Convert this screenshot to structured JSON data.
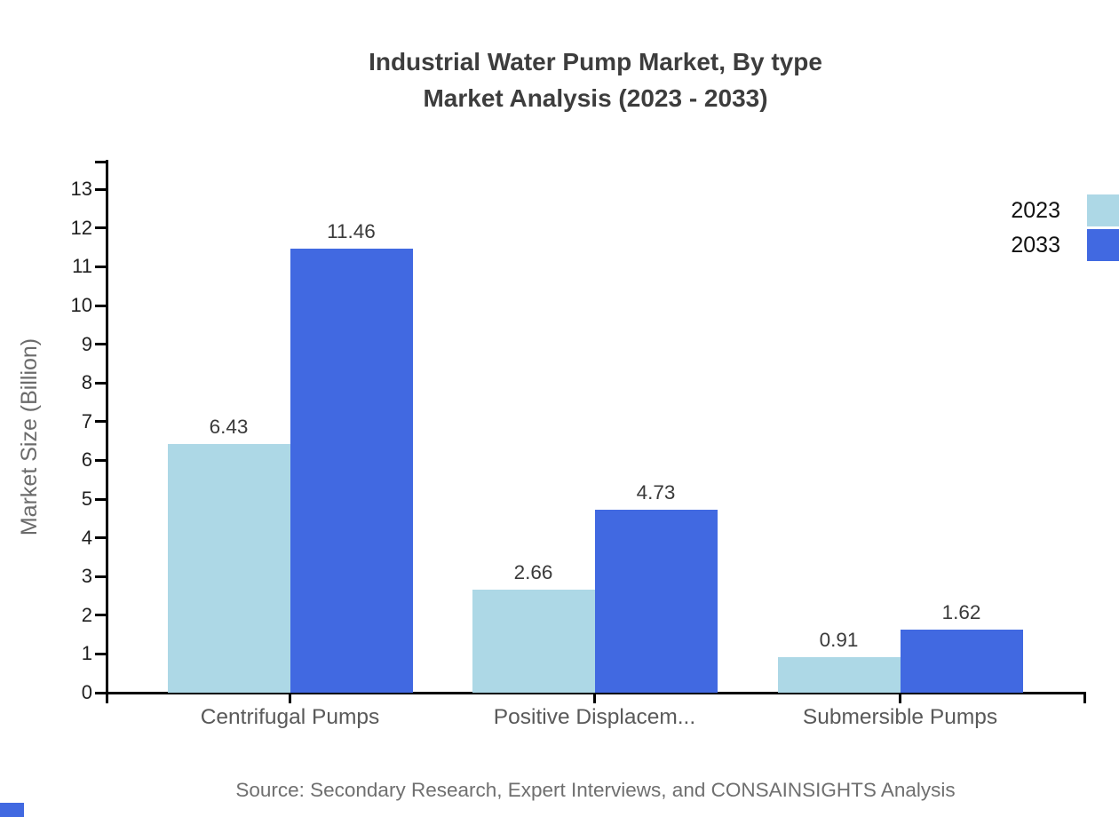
{
  "title": {
    "line1": "Industrial Water Pump Market, By type",
    "line2": "Market Analysis (2023 - 2033)"
  },
  "source": "Source: Secondary Research, Expert Interviews, and CONSAINSIGHTS Analysis",
  "colors": {
    "series_2023": "#ADD8E6",
    "series_2033": "#4169E1",
    "axis": "#000000",
    "title_text": "#3d3d3d",
    "value_label": "#3a3a3a",
    "category_label": "#595959",
    "tick_label": "#1f1f1f",
    "axis_title": "#6b6b6b",
    "source_text": "#6f6f6f",
    "corner_mark": "#4169E1"
  },
  "chart_data": {
    "type": "bar",
    "title": "Industrial Water Pump Market, By type Market Analysis (2023 - 2033)",
    "categories": [
      "Centrifugal Pumps",
      "Positive Displacem...",
      "Submersible Pumps"
    ],
    "series": [
      {
        "name": "2023",
        "color_key": "series_2023",
        "values": [
          6.43,
          2.66,
          0.91
        ]
      },
      {
        "name": "2033",
        "color_key": "series_2033",
        "values": [
          11.46,
          4.73,
          1.62
        ]
      }
    ],
    "xlabel": "",
    "ylabel": "Market Size (Billion)",
    "ylim": [
      0,
      13
    ],
    "ytick_step": 1,
    "grid": false,
    "legend_position": "top-right",
    "value_label_decimals": 2
  }
}
